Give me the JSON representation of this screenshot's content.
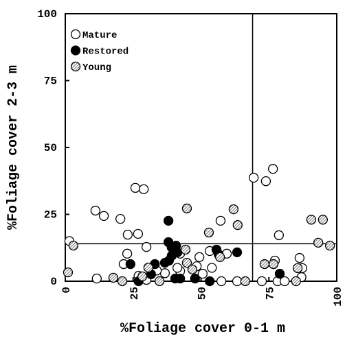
{
  "chart_data": {
    "type": "scatter",
    "xlabel": "%Foliage cover 0-1 m",
    "ylabel": "%Foliage cover 2-3 m",
    "xlim": [
      0,
      100
    ],
    "ylim": [
      0,
      100
    ],
    "xticks": [
      0,
      25,
      50,
      75,
      100
    ],
    "yticks": [
      0,
      25,
      50,
      75,
      100
    ],
    "reference_lines": {
      "x": 69,
      "y": 14
    },
    "legend": "top-left",
    "series": [
      {
        "name": "Mature",
        "color": "#ffffff",
        "x": [
          11.1,
          14.2,
          20.3,
          25.8,
          28.9,
          1.5,
          11.6,
          23,
          26.8,
          29.9,
          21.5,
          22.8,
          27,
          29.9,
          36.7,
          42.3,
          41.3,
          42.3,
          49.4,
          48.4,
          53.2,
          57.2,
          59.5,
          57.5,
          63.3,
          69.4,
          73.9,
          76.5,
          78.7,
          77.2,
          78.2,
          72.4,
          80.8,
          86.3,
          87.3,
          87,
          50.6,
          54,
          33.7
        ],
        "y": [
          26.4,
          24.4,
          23.3,
          34.9,
          34.4,
          15,
          1,
          17.4,
          17.7,
          12.8,
          6.4,
          10.3,
          2,
          0.5,
          3,
          3.8,
          5,
          10.3,
          9,
          5.6,
          11.3,
          22.6,
          10.3,
          0,
          0,
          38.7,
          37.4,
          42,
          17.2,
          7.7,
          0,
          0,
          0,
          8.7,
          4.9,
          1.5,
          2.8,
          5,
          4
        ]
      },
      {
        "name": "Restored",
        "color": "#000000",
        "x": [
          24,
          27,
          33,
          36.7,
          38,
          38,
          39.2,
          40.8,
          39.2,
          41.3,
          38.2,
          40.5,
          42.3,
          47.8,
          53.2,
          55.7,
          56.5,
          63.3,
          79,
          31.6
        ],
        "y": [
          6.4,
          0,
          6.4,
          6.9,
          22.6,
          14.6,
          12.6,
          13.3,
          9.5,
          10.8,
          7.7,
          1,
          1,
          1,
          0,
          11.8,
          10,
          10.8,
          2.8,
          2.6
        ]
      },
      {
        "name": "Young",
        "color": "#777777",
        "x": [
          1,
          3,
          17.7,
          21,
          28.4,
          30.6,
          34.7,
          44.8,
          44.3,
          44.8,
          46.8,
          52.9,
          57,
          62,
          63.5,
          66.3,
          73.4,
          76.7,
          85.6,
          85,
          90.6,
          94.9,
          93.2,
          97.5
        ],
        "y": [
          3.3,
          13.3,
          1.3,
          0,
          1.8,
          5.1,
          0,
          27.2,
          11.8,
          6.9,
          4.4,
          18.2,
          9,
          26.9,
          21,
          0,
          6.4,
          6.4,
          4.9,
          0,
          23,
          23,
          14.4,
          13.3
        ]
      }
    ]
  }
}
